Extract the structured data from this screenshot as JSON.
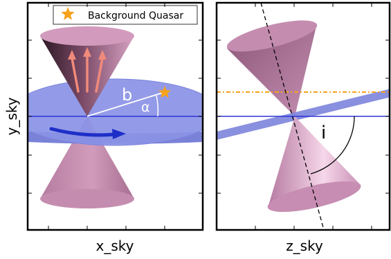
{
  "left_panel": {
    "xlabel": "x_sky",
    "ylabel": "y_sky",
    "legend_label": "Background Quasar",
    "label_b": "b",
    "label_alpha": "α"
  },
  "right_panel": {
    "xlabel": "z_sky",
    "label_i": "i"
  },
  "colors": {
    "cone": "#c98fb3",
    "cone_dark": "#3a2230",
    "disk": "#8088e0",
    "disk_line": "#2f33d6",
    "rotation_arrow": "#1e2fc8",
    "outflow_arrows": "#f08a7a",
    "quasar": "#f5a21d",
    "quasar_sightline": "#f5a21d"
  },
  "icons": {
    "quasar_marker": "star-icon",
    "rotation": "curved-arrow-icon"
  }
}
